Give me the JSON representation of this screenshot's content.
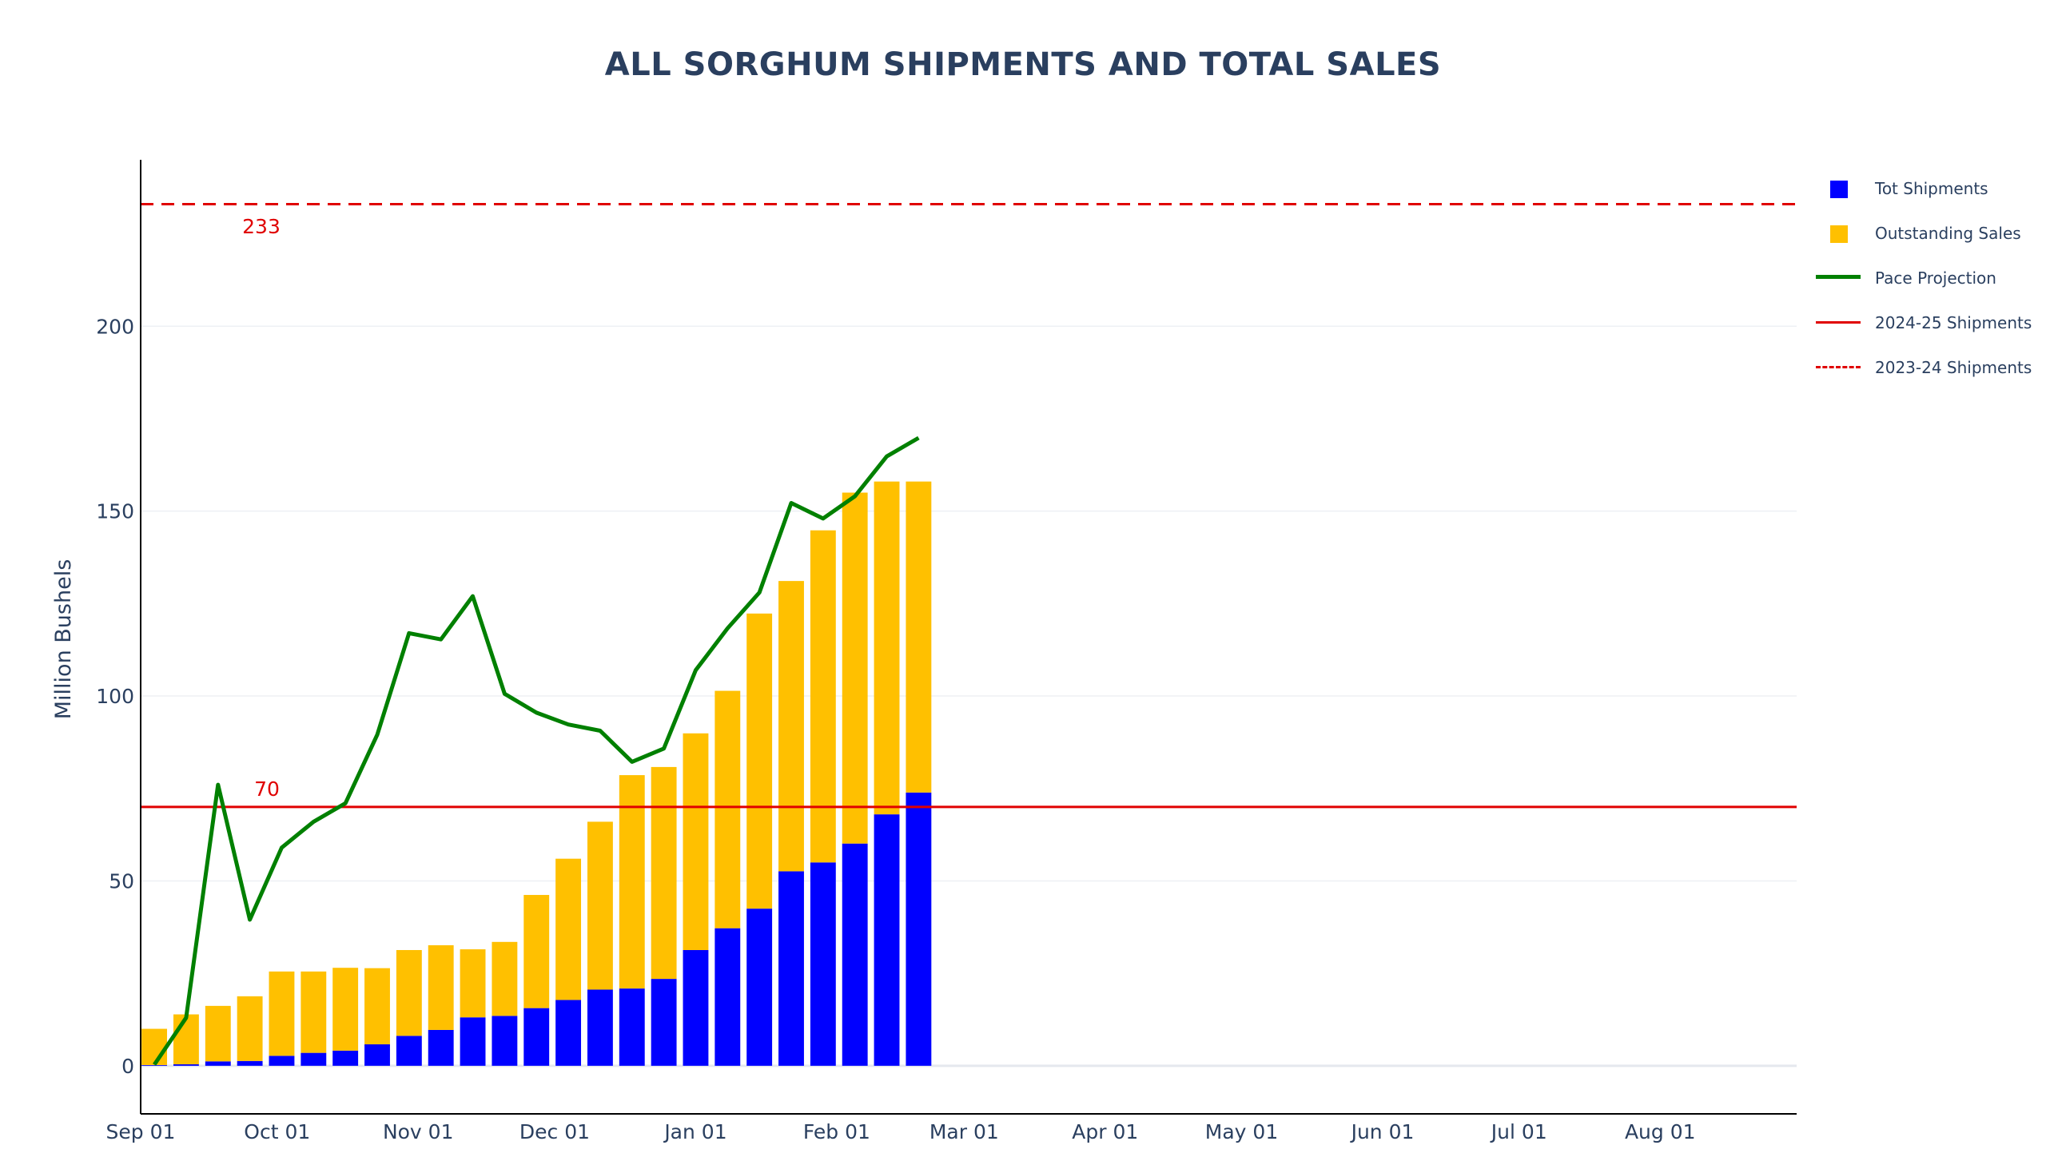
{
  "chart_data": {
    "type": "bar",
    "title": "ALL SORGHUM SHIPMENTS AND TOTAL SALES",
    "ylabel": "Million Bushels",
    "xlabel": "",
    "barmode": "stack",
    "ylim": [
      -13,
      245
    ],
    "xlim": [
      "2024-09-01",
      "2025-08-31"
    ],
    "grid": true,
    "legend_position": "right",
    "x_ticks": [
      "Sep 01",
      "Oct 01",
      "Nov 01",
      "Dec 01",
      "Jan 01",
      "Feb 01",
      "Mar 01",
      "Apr 01",
      "May 01",
      "Jun 01",
      "Jul 01",
      "Aug 01"
    ],
    "x_tick_dates": [
      "2024-09-01",
      "2024-10-01",
      "2024-11-01",
      "2024-12-01",
      "2025-01-01",
      "2025-02-01",
      "2025-03-01",
      "2025-04-01",
      "2025-05-01",
      "2025-06-01",
      "2025-07-01",
      "2025-08-01"
    ],
    "y_ticks": [
      0,
      50,
      100,
      150,
      200
    ],
    "dates": [
      "2024-09-04",
      "2024-09-11",
      "2024-09-18",
      "2024-09-25",
      "2024-10-02",
      "2024-10-09",
      "2024-10-16",
      "2024-10-23",
      "2024-10-30",
      "2024-11-06",
      "2024-11-13",
      "2024-11-20",
      "2024-11-27",
      "2024-12-04",
      "2024-12-11",
      "2024-12-18",
      "2024-12-25",
      "2025-01-01",
      "2025-01-08",
      "2025-01-15",
      "2025-01-22",
      "2025-01-29",
      "2025-02-05",
      "2025-02-12",
      "2025-02-19"
    ],
    "series": [
      {
        "name": "Tot Shipments",
        "color": "#0000ff",
        "kind": "bar",
        "values": [
          0.2,
          0.4,
          1.2,
          1.3,
          2.7,
          3.5,
          4.1,
          5.8,
          8.1,
          9.7,
          13.1,
          13.5,
          15.6,
          17.8,
          20.6,
          20.9,
          23.5,
          31.3,
          37.2,
          42.5,
          52.6,
          55.0,
          60.1,
          68.0,
          73.9
        ]
      },
      {
        "name": "Outstanding Sales",
        "color": "#ffc000",
        "kind": "bar",
        "values": [
          9.8,
          13.5,
          15.0,
          17.5,
          22.8,
          22.0,
          22.4,
          20.6,
          23.2,
          22.9,
          18.4,
          20.0,
          30.6,
          38.2,
          45.4,
          57.7,
          57.3,
          58.6,
          64.2,
          79.8,
          78.5,
          89.8,
          94.9,
          90.0,
          84.1
        ]
      },
      {
        "name": "Pace Projection",
        "color": "#008000",
        "kind": "line",
        "values": [
          0.3,
          13.0,
          76.0,
          39.5,
          59.0,
          66.0,
          71.0,
          89.5,
          117.0,
          115.3,
          127.0,
          100.6,
          95.5,
          92.3,
          90.6,
          82.2,
          85.8,
          107.0,
          118.3,
          128.0,
          152.2,
          148.0,
          154.0,
          164.8,
          169.8
        ]
      },
      {
        "name": "2024-25 Shipments",
        "color": "#e00000",
        "kind": "hline",
        "value": 70
      },
      {
        "name": "2023-24 Shipments",
        "color": "#e00000",
        "kind": "hline-dashed",
        "value": 233
      }
    ],
    "annotations": [
      {
        "text": "233",
        "color": "#e00000"
      },
      {
        "text": "70",
        "color": "#e00000"
      }
    ]
  }
}
